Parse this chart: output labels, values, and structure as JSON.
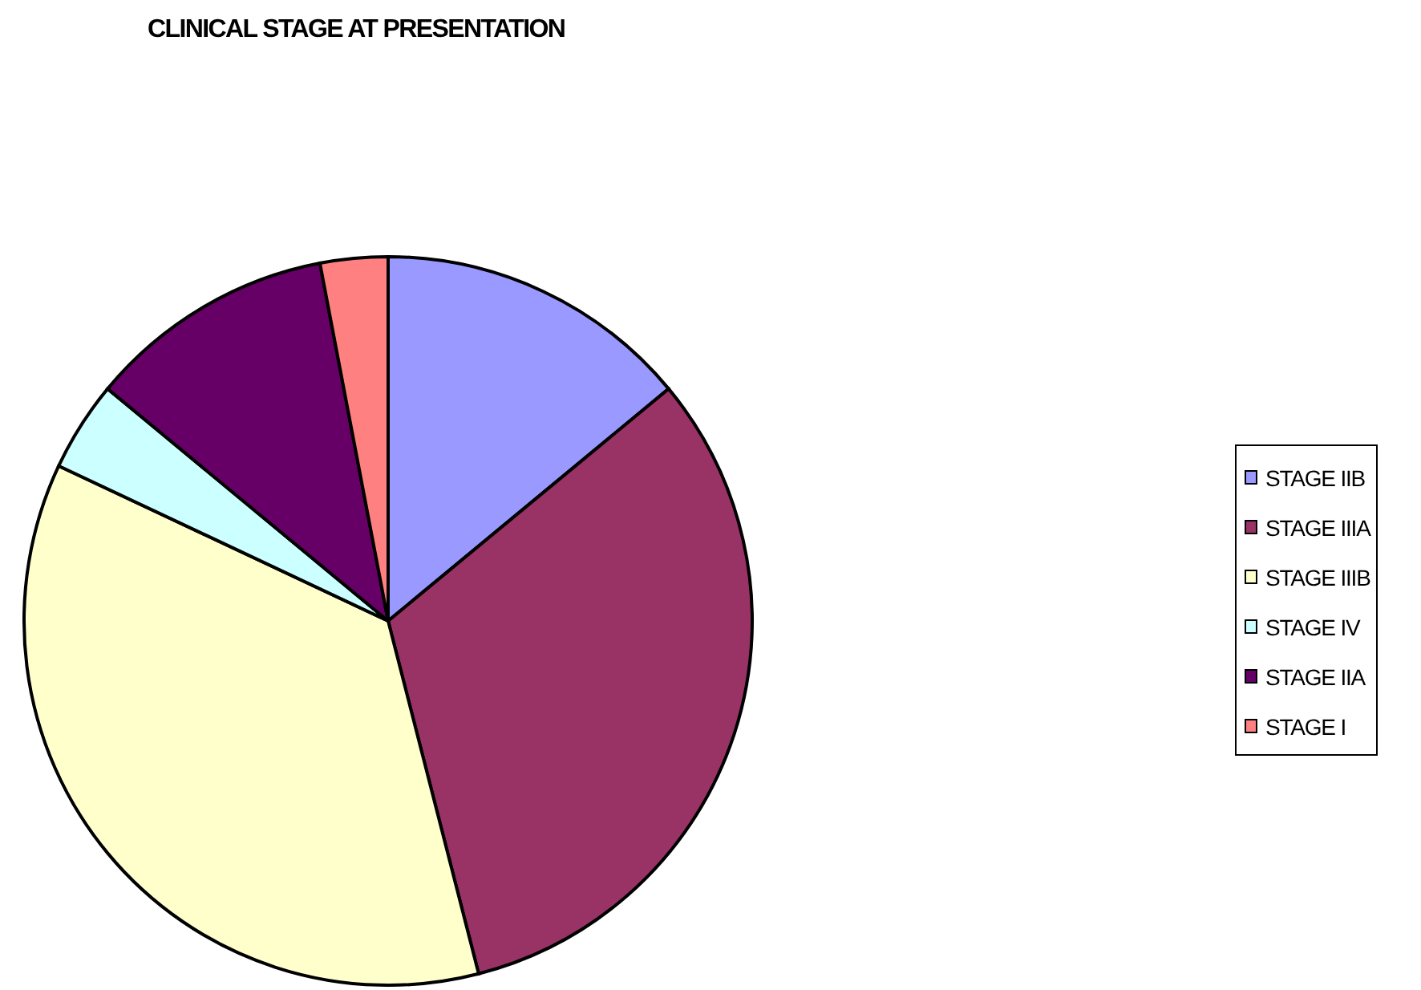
{
  "chart_data": {
    "type": "pie",
    "title": "CLINICAL STAGE AT PRESENTATION",
    "categories": [
      "STAGE IIB",
      "STAGE IIIA",
      "STAGE IIIB",
      "STAGE IV",
      "STAGE IIA",
      "STAGE I"
    ],
    "values": [
      14,
      32,
      36,
      4,
      11,
      3
    ],
    "colors": [
      "#9999ff",
      "#993366",
      "#ffffcc",
      "#ccffff",
      "#660066",
      "#ff8080"
    ],
    "legend": "right"
  }
}
